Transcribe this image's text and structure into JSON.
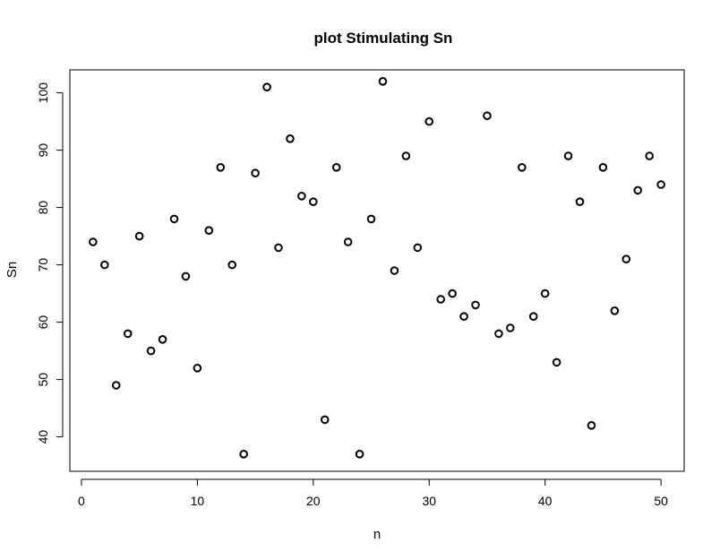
{
  "chart_data": {
    "type": "scatter",
    "title": "plot Stimulating Sn",
    "xlabel": "n",
    "ylabel": "Sn",
    "xlim": [
      -1,
      52
    ],
    "ylim": [
      34,
      104
    ],
    "xticks": [
      0,
      10,
      20,
      30,
      40,
      50
    ],
    "yticks": [
      40,
      50,
      60,
      70,
      80,
      90,
      100
    ],
    "marker": "open-circle",
    "grid": false,
    "x": [
      1,
      2,
      3,
      4,
      5,
      6,
      7,
      8,
      9,
      10,
      11,
      12,
      13,
      14,
      15,
      16,
      17,
      18,
      19,
      20,
      21,
      22,
      23,
      24,
      25,
      26,
      27,
      28,
      29,
      30,
      31,
      32,
      33,
      34,
      35,
      36,
      37,
      38,
      39,
      40,
      41,
      42,
      43,
      44,
      45,
      46,
      47,
      48,
      49,
      50
    ],
    "y": [
      74,
      70,
      49,
      58,
      75,
      55,
      57,
      78,
      68,
      52,
      76,
      87,
      70,
      37,
      86,
      101,
      73,
      92,
      82,
      81,
      43,
      87,
      74,
      37,
      78,
      102,
      69,
      89,
      73,
      95,
      64,
      65,
      61,
      63,
      96,
      58,
      59,
      87,
      61,
      65,
      53,
      89,
      81,
      42,
      87,
      62,
      71,
      83,
      89,
      84
    ]
  }
}
